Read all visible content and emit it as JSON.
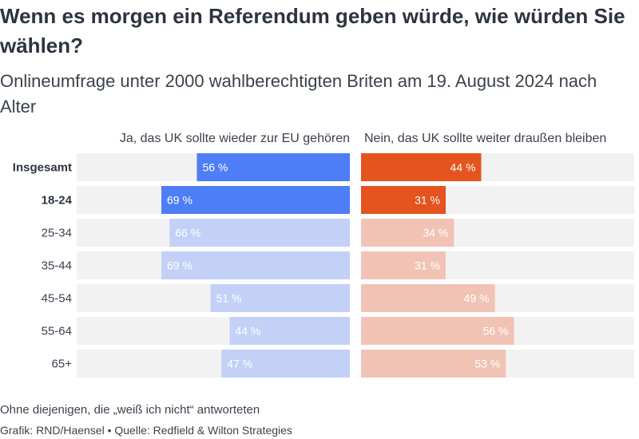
{
  "header": {
    "title": "Wenn es morgen ein Referendum geben würde, wie würden Sie wählen?",
    "subtitle": "Onlineumfrage unter 2000 wahlberechtigten Briten am 19. August 2024 nach Alter"
  },
  "footer": {
    "note": "Ohne diejenigen, die „weiß ich nicht“ antworteten",
    "source": "Grafik: RND/Haensel • Quelle: Redfield & Wilton Strategies"
  },
  "colors": {
    "yes_strong": "#4e7ef7",
    "yes_light": "#c3d1f7",
    "no_strong": "#e5531f",
    "no_light": "#f1c3b5",
    "track": "#f2f2f2"
  },
  "chart_data": {
    "type": "bar",
    "layout": "diverging-butterfly",
    "categories": [
      "Insgesamt",
      "18-24",
      "25-34",
      "35-44",
      "45-54",
      "55-64",
      "65+"
    ],
    "highlighted": [
      "Insgesamt",
      "18-24"
    ],
    "value_suffix": " %",
    "series": [
      {
        "name": "Ja, das UK sollte wieder zur EU gehören",
        "values": [
          56,
          69,
          66,
          69,
          51,
          44,
          47
        ]
      },
      {
        "name": "Nein, das UK sollte weiter draußen bleiben",
        "values": [
          44,
          31,
          34,
          31,
          49,
          56,
          53
        ]
      }
    ],
    "xlim": [
      0,
      100
    ]
  }
}
